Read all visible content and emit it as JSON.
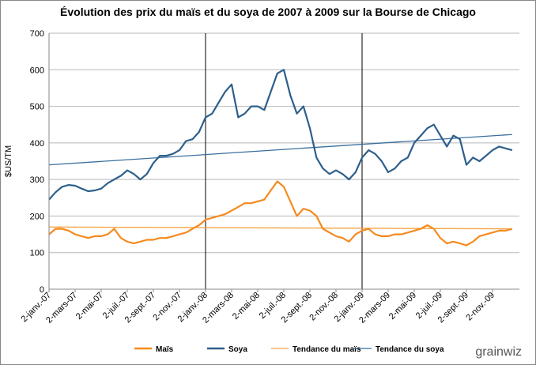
{
  "chart_data": {
    "type": "line",
    "title": "Évolution des prix du maïs et du soya de 2007 à 2009 sur la Bourse de Chicago",
    "y_label": "$US/TM",
    "watermark": "grainwiz",
    "categories": [
      "2-janv.-07",
      null,
      null,
      null,
      "2-mars-07",
      null,
      null,
      null,
      "2-mai-07",
      null,
      null,
      null,
      "2-juil.-07",
      null,
      null,
      null,
      "2-sept.-07",
      null,
      null,
      null,
      "2-nov.-07",
      null,
      null,
      null,
      "2-janv.-08",
      null,
      null,
      null,
      "2-mars-08",
      null,
      null,
      null,
      "2-mai-08",
      null,
      null,
      null,
      "2-juil.-08",
      null,
      null,
      null,
      "2-sept.-08",
      null,
      null,
      null,
      "2-nov.-08",
      null,
      null,
      null,
      "2-janv.-09",
      null,
      null,
      null,
      "2-mars-09",
      null,
      null,
      null,
      "2-mai-09",
      null,
      null,
      null,
      "2-juil.-09",
      null,
      null,
      null,
      "2-sept.-09",
      null,
      null,
      null,
      "2-nov.-09",
      null,
      null,
      null
    ],
    "series": [
      {
        "name": "Maïs",
        "color": "#f58a1f",
        "values": [
          150,
          165,
          165,
          160,
          150,
          145,
          140,
          145,
          145,
          150,
          165,
          140,
          130,
          125,
          130,
          135,
          135,
          140,
          140,
          145,
          150,
          155,
          165,
          175,
          190,
          195,
          200,
          205,
          215,
          225,
          235,
          235,
          240,
          245,
          270,
          295,
          280,
          240,
          200,
          220,
          215,
          200,
          165,
          155,
          145,
          140,
          130,
          150,
          160,
          165,
          150,
          145,
          145,
          150,
          150,
          155,
          160,
          165,
          175,
          165,
          140,
          125,
          130,
          125,
          120,
          130,
          145,
          150,
          155,
          160,
          160,
          165
        ]
      },
      {
        "name": "Soya",
        "color": "#2d5f8b",
        "values": [
          245,
          265,
          280,
          285,
          283,
          275,
          268,
          270,
          275,
          290,
          300,
          310,
          325,
          315,
          300,
          315,
          345,
          365,
          365,
          370,
          380,
          405,
          410,
          430,
          470,
          480,
          510,
          540,
          560,
          470,
          480,
          500,
          500,
          490,
          540,
          590,
          600,
          530,
          480,
          500,
          440,
          360,
          330,
          315,
          325,
          315,
          300,
          320,
          360,
          380,
          370,
          350,
          320,
          330,
          350,
          360,
          400,
          420,
          440,
          450,
          420,
          390,
          420,
          410,
          340,
          360,
          350,
          365,
          380,
          390,
          385,
          380
        ]
      }
    ],
    "trend_lines": [
      {
        "name": "Tendance du maïs",
        "color": "#f5a445",
        "values": [
          170,
          165
        ]
      },
      {
        "name": "Tendance du soya",
        "color": "#3a6f9e",
        "values": [
          340,
          423
        ]
      }
    ],
    "ylim": [
      0,
      700
    ],
    "yticks": [
      0,
      100,
      200,
      300,
      400,
      500,
      600,
      700
    ],
    "grid": true
  }
}
